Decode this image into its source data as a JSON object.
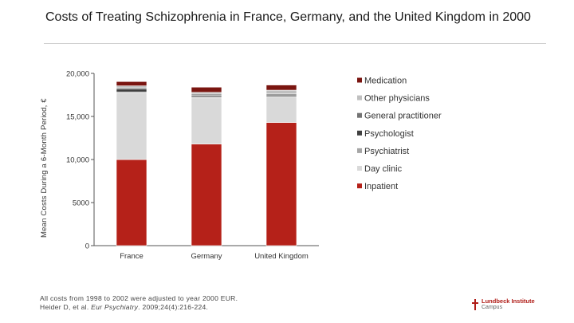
{
  "slide": {
    "title": "Costs of Treating Schizophrenia in France, Germany, and the United Kingdom in 2000",
    "footnote_line1": "All costs from 1998 to 2002 were adjusted to year 2000 EUR.",
    "footnote_line2_prefix": "Heider D, et al. ",
    "footnote_line2_journal": "Eur Psychiatry",
    "footnote_line2_suffix": ". 2009;24(4):216-224.",
    "logo_line1": "Lundbeck Institute",
    "logo_line2": "Campus"
  },
  "chart_data": {
    "type": "bar",
    "stacked": true,
    "title": "",
    "xlabel": "",
    "ylabel": "Mean Costs During a 6-Month Period, €",
    "ylim": [
      0,
      20000
    ],
    "yticks": [
      0,
      5000,
      10000,
      15000,
      20000
    ],
    "ytick_labels": [
      "0",
      "5000",
      "10,000",
      "15,000",
      "20,000"
    ],
    "categories": [
      "France",
      "Germany",
      "United Kingdom"
    ],
    "legend_position": "right",
    "series": [
      {
        "name": "Inpatient",
        "color": "#b52119",
        "values": [
          10000,
          11800,
          14300
        ]
      },
      {
        "name": "Day clinic",
        "color": "#d9d9d9",
        "values": [
          7700,
          5350,
          2900
        ]
      },
      {
        "name": "Psychiatrist",
        "color": "#a6a6a6",
        "values": [
          150,
          150,
          150
        ]
      },
      {
        "name": "Psychologist",
        "color": "#404040",
        "values": [
          350,
          150,
          150
        ]
      },
      {
        "name": "General practitioner",
        "color": "#737373",
        "values": [
          150,
          150,
          150
        ]
      },
      {
        "name": "Other physicians",
        "color": "#c0c0c0",
        "values": [
          200,
          200,
          400
        ]
      },
      {
        "name": "Medication",
        "color": "#7a1510",
        "values": [
          500,
          600,
          600
        ]
      }
    ],
    "legend_order": [
      "Medication",
      "Other physicians",
      "General practitioner",
      "Psychologist",
      "Psychiatrist",
      "Day clinic",
      "Inpatient"
    ]
  }
}
